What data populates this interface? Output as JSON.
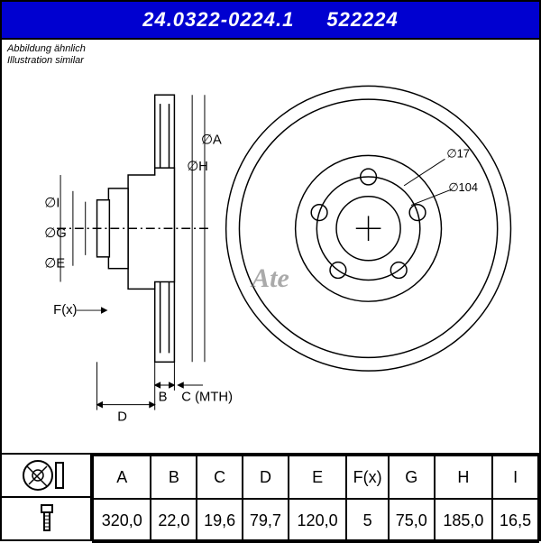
{
  "header": {
    "part_no": "24.0322-0224.1",
    "alt_no": "522224"
  },
  "subtitle": {
    "line1": "Abbildung ähnlich",
    "line2": "Illustration similar"
  },
  "brand": "Ate",
  "drawing": {
    "line_color": "#000000",
    "line_width": 1.5,
    "section_labels": {
      "diameters": [
        "∅I",
        "∅G",
        "∅E",
        "∅H",
        "∅A"
      ],
      "lengths": [
        "F(x)",
        "D",
        "B",
        "C (MTH)"
      ]
    },
    "face_labels": {
      "bolt_hole": "∅17",
      "pitch_circle": "∅104"
    }
  },
  "spec_table": {
    "columns": [
      "A",
      "B",
      "C",
      "D",
      "E",
      "F(x)",
      "G",
      "H",
      "I"
    ],
    "values": [
      "320,0",
      "22,0",
      "19,6",
      "79,7",
      "120,0",
      "5",
      "75,0",
      "185,0",
      "16,5"
    ]
  },
  "colors": {
    "header_bg": "#0000d0",
    "header_text": "#ffffff",
    "border": "#000000",
    "bg": "#ffffff",
    "logo": "#666666"
  }
}
